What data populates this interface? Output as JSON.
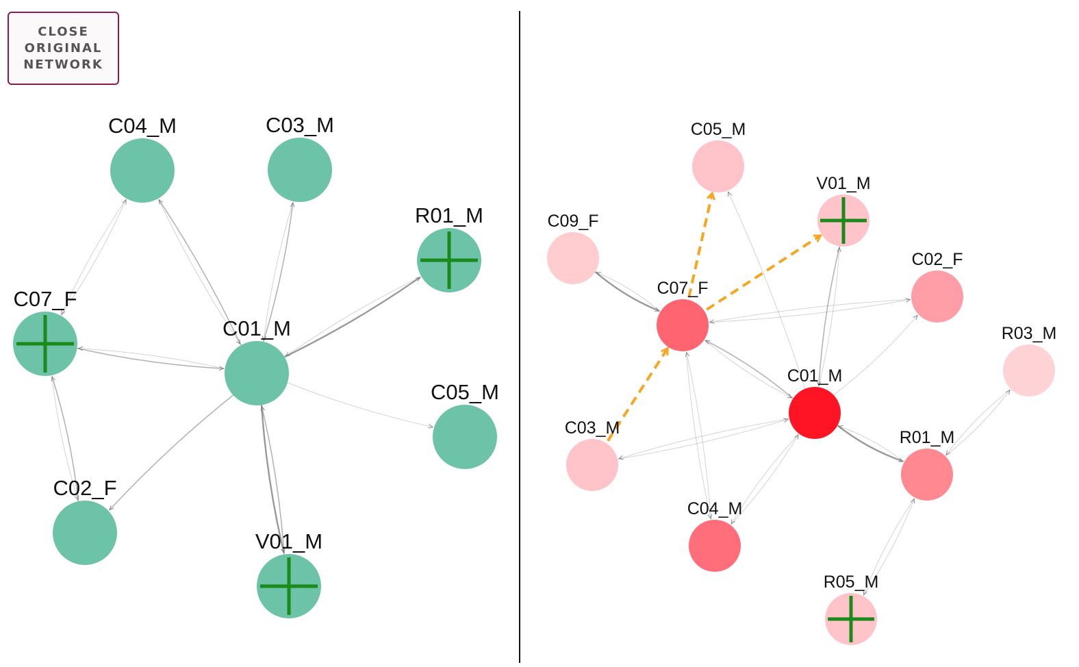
{
  "controls": {
    "close_line1": "CLOSE",
    "close_line2": "ORIGINAL",
    "close_line3": "NETWORK"
  },
  "colors": {
    "left_node": "#6cc3a7",
    "marker": "#1a8a1a",
    "edge": "#999999",
    "highlight_edge": "#f5a623"
  },
  "left_network": {
    "nodes": [
      {
        "id": "C04_M",
        "label": "C04_M",
        "marker": false
      },
      {
        "id": "C03_M",
        "label": "C03_M",
        "marker": false
      },
      {
        "id": "R01_M",
        "label": "R01_M",
        "marker": true
      },
      {
        "id": "C07_F",
        "label": "C07_F",
        "marker": true
      },
      {
        "id": "C01_M",
        "label": "C01_M",
        "marker": false
      },
      {
        "id": "C05_M",
        "label": "C05_M",
        "marker": false
      },
      {
        "id": "C02_F",
        "label": "C02_F",
        "marker": false
      },
      {
        "id": "V01_M",
        "label": "V01_M",
        "marker": true
      }
    ],
    "edges": [
      {
        "from": "C01_M",
        "to": "R01_M",
        "weight": "strong"
      },
      {
        "from": "R01_M",
        "to": "C01_M",
        "weight": "light"
      },
      {
        "from": "C01_M",
        "to": "C04_M",
        "weight": "medium"
      },
      {
        "from": "C04_M",
        "to": "C01_M",
        "weight": "light"
      },
      {
        "from": "C01_M",
        "to": "C03_M",
        "weight": "medium"
      },
      {
        "from": "C03_M",
        "to": "C01_M",
        "weight": "light"
      },
      {
        "from": "C07_F",
        "to": "C01_M",
        "weight": "medium"
      },
      {
        "from": "C01_M",
        "to": "C07_F",
        "weight": "light"
      },
      {
        "from": "C01_M",
        "to": "C05_M",
        "weight": "light"
      },
      {
        "from": "C01_M",
        "to": "C02_F",
        "weight": "medium"
      },
      {
        "from": "C01_M",
        "to": "V01_M",
        "weight": "strong"
      },
      {
        "from": "V01_M",
        "to": "C01_M",
        "weight": "medium"
      },
      {
        "from": "C07_F",
        "to": "C04_M",
        "weight": "light"
      },
      {
        "from": "C04_M",
        "to": "C07_F",
        "weight": "light"
      },
      {
        "from": "C02_F",
        "to": "C07_F",
        "weight": "medium"
      },
      {
        "from": "C07_F",
        "to": "C02_F",
        "weight": "light"
      }
    ]
  },
  "right_network": {
    "nodes": [
      {
        "id": "C05_M",
        "label": "C05_M",
        "color": "#ffc4c9",
        "marker": false
      },
      {
        "id": "V01_M",
        "label": "V01_M",
        "color": "#ffc4c9",
        "marker": true
      },
      {
        "id": "C09_F",
        "label": "C09_F",
        "color": "#ffccd0",
        "marker": false
      },
      {
        "id": "C02_F",
        "label": "C02_F",
        "color": "#ff9ea6",
        "marker": false
      },
      {
        "id": "C07_F",
        "label": "C07_F",
        "color": "#ff6471",
        "marker": false
      },
      {
        "id": "R03_M",
        "label": "R03_M",
        "color": "#ffd3d6",
        "marker": false
      },
      {
        "id": "C01_M",
        "label": "C01_M",
        "color": "#ff1424",
        "marker": false
      },
      {
        "id": "C03_M",
        "label": "C03_M",
        "color": "#ffc4c9",
        "marker": false
      },
      {
        "id": "R01_M",
        "label": "R01_M",
        "color": "#ff8891",
        "marker": false
      },
      {
        "id": "C04_M",
        "label": "C04_M",
        "color": "#ff6e7a",
        "marker": false
      },
      {
        "id": "R05_M",
        "label": "R05_M",
        "color": "#ffc4c9",
        "marker": true
      }
    ],
    "edges": [
      {
        "from": "C09_F",
        "to": "C07_F",
        "weight": "strong"
      },
      {
        "from": "C07_F",
        "to": "C09_F",
        "weight": "light"
      },
      {
        "from": "C07_F",
        "to": "C02_F",
        "weight": "light"
      },
      {
        "from": "C02_F",
        "to": "C07_F",
        "weight": "light"
      },
      {
        "from": "C01_M",
        "to": "C07_F",
        "weight": "medium"
      },
      {
        "from": "C07_F",
        "to": "C01_M",
        "weight": "light"
      },
      {
        "from": "C01_M",
        "to": "C02_F",
        "weight": "light"
      },
      {
        "from": "C01_M",
        "to": "C05_M",
        "weight": "light"
      },
      {
        "from": "V01_M",
        "to": "C01_M",
        "weight": "medium"
      },
      {
        "from": "C01_M",
        "to": "V01_M",
        "weight": "light"
      },
      {
        "from": "C01_M",
        "to": "C03_M",
        "weight": "light"
      },
      {
        "from": "C03_M",
        "to": "C01_M",
        "weight": "light"
      },
      {
        "from": "C01_M",
        "to": "C04_M",
        "weight": "light"
      },
      {
        "from": "C04_M",
        "to": "C01_M",
        "weight": "light"
      },
      {
        "from": "C01_M",
        "to": "R01_M",
        "weight": "strong"
      },
      {
        "from": "R01_M",
        "to": "C01_M",
        "weight": "light"
      },
      {
        "from": "R01_M",
        "to": "R03_M",
        "weight": "light"
      },
      {
        "from": "R03_M",
        "to": "R01_M",
        "weight": "light"
      },
      {
        "from": "R05_M",
        "to": "R01_M",
        "weight": "light"
      },
      {
        "from": "R01_M",
        "to": "R05_M",
        "weight": "light"
      },
      {
        "from": "C04_M",
        "to": "C07_F",
        "weight": "light"
      },
      {
        "from": "C07_F",
        "to": "C04_M",
        "weight": "light"
      }
    ],
    "highlight_edges": [
      {
        "from": "C07_F",
        "to": "C05_M"
      },
      {
        "from": "C07_F",
        "to": "V01_M"
      },
      {
        "from": "C03_M",
        "to": "C07_F"
      }
    ]
  }
}
